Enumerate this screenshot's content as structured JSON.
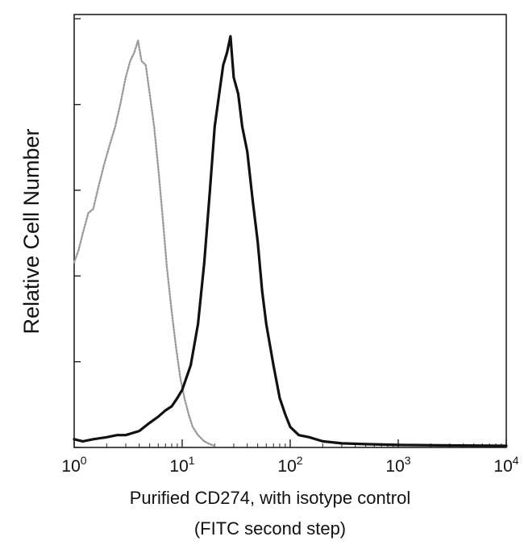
{
  "chart_data": {
    "type": "line",
    "title": "",
    "xlabel": "Purified CD274, with isotype control",
    "xlabel_line2": "(FITC second step)",
    "ylabel": "Relative Cell Number",
    "x_scale": "log",
    "xlim": [
      1,
      10000
    ],
    "ylim": [
      0,
      1
    ],
    "grid": false,
    "legend": "none",
    "x_ticks": [
      {
        "value": 1,
        "base": "10",
        "exp": "0"
      },
      {
        "value": 10,
        "base": "10",
        "exp": "1"
      },
      {
        "value": 100,
        "base": "10",
        "exp": "2"
      },
      {
        "value": 1000,
        "base": "10",
        "exp": "3"
      },
      {
        "value": 10000,
        "base": "10",
        "exp": "4"
      }
    ],
    "series": [
      {
        "color": "#9a9a9a",
        "style": "dotted",
        "x": [
          1.0,
          1.1,
          1.2,
          1.35,
          1.5,
          1.7,
          1.9,
          2.1,
          2.4,
          2.7,
          3.0,
          3.3,
          3.6,
          3.9,
          4.2,
          4.6,
          5.0,
          5.5,
          6.0,
          6.6,
          7.2,
          8.0,
          8.8,
          9.6,
          10.5,
          11.5,
          12.5,
          14.0,
          16.0,
          18.0,
          20.0
        ],
        "y": [
          0.45,
          0.48,
          0.52,
          0.57,
          0.58,
          0.64,
          0.69,
          0.73,
          0.78,
          0.84,
          0.9,
          0.94,
          0.96,
          0.99,
          0.94,
          0.93,
          0.86,
          0.78,
          0.68,
          0.56,
          0.44,
          0.33,
          0.24,
          0.17,
          0.12,
          0.08,
          0.05,
          0.03,
          0.015,
          0.008,
          0.004
        ]
      },
      {
        "color": "#111111",
        "style": "solid",
        "x": [
          1.0,
          1.2,
          1.5,
          2.0,
          2.5,
          3.0,
          4.0,
          5.0,
          6.0,
          7.0,
          8.0,
          9.0,
          10.0,
          12.0,
          14.0,
          16.0,
          18.0,
          20.0,
          22.0,
          24.0,
          26.0,
          28.0,
          30.0,
          33.0,
          36.0,
          40.0,
          45.0,
          50.0,
          55.0,
          60.0,
          70.0,
          80.0,
          90.0,
          100.0,
          120.0,
          150.0,
          200.0,
          300.0,
          500.0,
          1000.0,
          3000.0,
          10000.0
        ],
        "y": [
          0.02,
          0.015,
          0.02,
          0.025,
          0.03,
          0.03,
          0.04,
          0.06,
          0.075,
          0.09,
          0.1,
          0.12,
          0.14,
          0.2,
          0.3,
          0.45,
          0.62,
          0.78,
          0.86,
          0.93,
          0.96,
          1.0,
          0.9,
          0.86,
          0.78,
          0.72,
          0.6,
          0.5,
          0.38,
          0.3,
          0.2,
          0.12,
          0.08,
          0.05,
          0.03,
          0.025,
          0.015,
          0.01,
          0.008,
          0.006,
          0.005,
          0.004
        ]
      }
    ]
  }
}
